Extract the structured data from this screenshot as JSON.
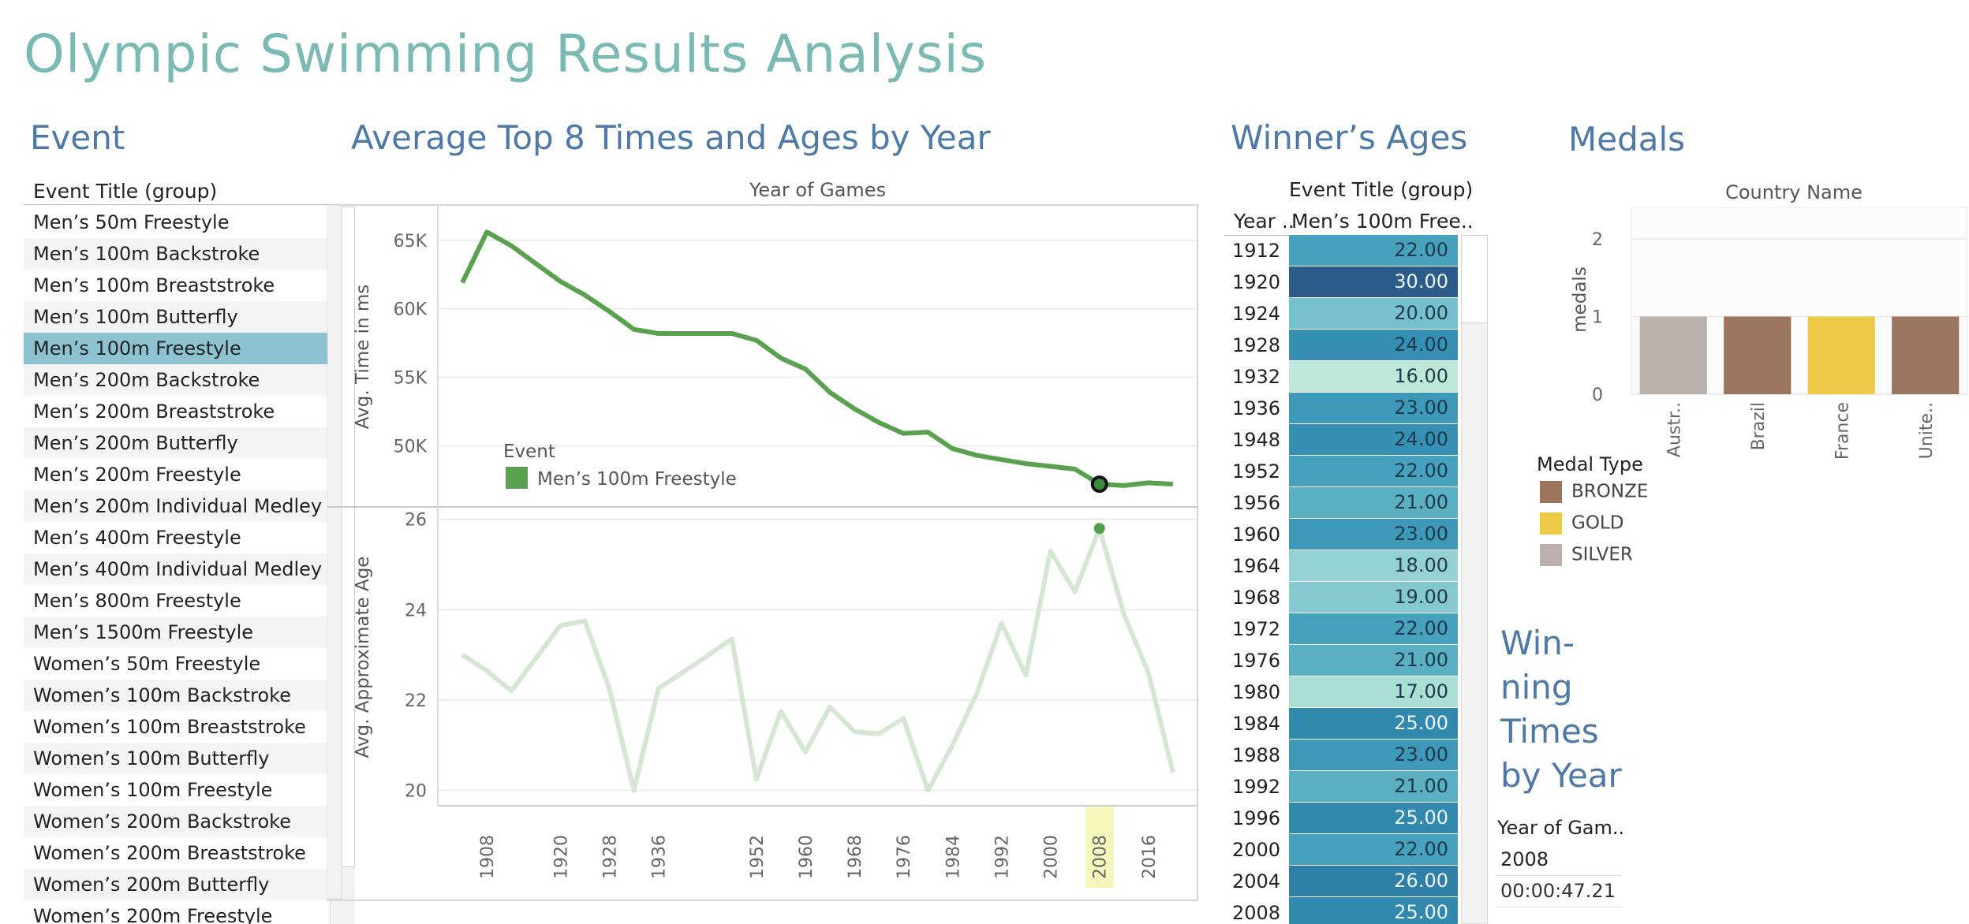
{
  "page_title": "Olympic Swimming Results Analysis",
  "event_section": {
    "title": "Event",
    "header": "Event Title (group)",
    "selected_index": 4,
    "items": [
      "Men’s 50m Freestyle",
      "Men’s 100m Backstroke",
      "Men’s 100m Breaststroke",
      "Men’s 100m Butterfly",
      "Men’s 100m Freestyle",
      "Men’s 200m Backstroke",
      "Men’s 200m Breaststroke",
      "Men’s 200m Butterfly",
      "Men’s 200m Freestyle",
      "Men’s 200m Individual Medley",
      "Men’s 400m Freestyle",
      "Men’s 400m Individual Medley",
      "Men’s 800m Freestyle",
      "Men’s 1500m Freestyle",
      "Women’s 50m Freestyle",
      "Women’s 100m Backstroke",
      "Women’s 100m Breaststroke",
      "Women’s 100m Butterfly",
      "Women’s 100m Freestyle",
      "Women’s 200m Backstroke",
      "Women’s 200m Breaststroke",
      "Women’s 200m Butterfly",
      "Women’s 200m Freestyle"
    ]
  },
  "line_section": {
    "title": "Average Top 8 Times and Ages by Year",
    "x_header": "Year of Games",
    "highlight_year": "2008",
    "colors": {
      "time_line": "#59a14f",
      "age_line": "#d5e6d3",
      "highlight": "#f1f2a6"
    }
  },
  "chart_data": [
    {
      "type": "line",
      "ylabel": "Avg. Time in ms",
      "ylim": [
        46000,
        67000
      ],
      "yticks": [
        "50K",
        "55K",
        "60K",
        "65K"
      ],
      "ytick_values": [
        50000,
        55000,
        60000,
        65000
      ],
      "xticks": [
        "1908",
        "1920",
        "1928",
        "1936",
        "1952",
        "1960",
        "1968",
        "1976",
        "1984",
        "1992",
        "2000",
        "2008",
        "2016"
      ],
      "x": [
        1904,
        1908,
        1912,
        1920,
        1924,
        1928,
        1932,
        1936,
        1948,
        1952,
        1956,
        1960,
        1964,
        1968,
        1972,
        1976,
        1980,
        1984,
        1988,
        1992,
        1996,
        2000,
        2004,
        2008,
        2012,
        2016,
        2020
      ],
      "series": [
        {
          "name": "Men’s 100m Freestyle",
          "values": [
            61900,
            65600,
            64600,
            62000,
            61000,
            59800,
            58500,
            58200,
            58200,
            57700,
            56400,
            55600,
            53900,
            52700,
            51700,
            50900,
            51000,
            49800,
            49300,
            49000,
            48700,
            48500,
            48300,
            47200,
            47100,
            47300,
            47200
          ]
        }
      ],
      "legend": {
        "title": "Event",
        "items": [
          "Men’s 100m Freestyle"
        ]
      }
    },
    {
      "type": "line",
      "ylabel": "Avg. Approximate Age",
      "ylim": [
        19.8,
        26.1
      ],
      "yticks": [
        "20",
        "22",
        "24",
        "26"
      ],
      "ytick_values": [
        20,
        22,
        24,
        26
      ],
      "x": [
        1904,
        1908,
        1912,
        1920,
        1924,
        1928,
        1932,
        1936,
        1948,
        1952,
        1956,
        1960,
        1964,
        1968,
        1972,
        1976,
        1980,
        1984,
        1988,
        1992,
        1996,
        2000,
        2004,
        2008,
        2012,
        2016,
        2020
      ],
      "series": [
        {
          "values": [
            23.0,
            22.65,
            22.2,
            23.65,
            23.75,
            22.25,
            20.0,
            22.25,
            23.35,
            20.25,
            21.75,
            20.85,
            21.85,
            21.3,
            21.25,
            21.6,
            20.0,
            21.0,
            22.15,
            23.7,
            22.55,
            25.3,
            24.4,
            25.8,
            23.9,
            22.6,
            20.4
          ]
        }
      ]
    },
    {
      "type": "bar",
      "title": "Country Name",
      "ylabel": "medals",
      "ylim": [
        0,
        2
      ],
      "yticks": [
        "0",
        "1",
        "2"
      ],
      "categories": [
        "Austr..",
        "Brazil",
        "France",
        "Unite.."
      ],
      "values": [
        1,
        1,
        1,
        1
      ],
      "bar_colors": [
        "#bab0ac",
        "#9c755f",
        "#edc948",
        "#9c755f"
      ],
      "legend": {
        "title": "Medal Type",
        "items": [
          {
            "label": "BRONZE",
            "color": "#9c755f"
          },
          {
            "label": "GOLD",
            "color": "#edc948"
          },
          {
            "label": "SILVER",
            "color": "#bab0ac"
          }
        ]
      }
    },
    {
      "type": "heatmap",
      "title": "Winner’s Ages",
      "header": "Event Title (group)",
      "col_year": "Year ..",
      "col_event": "Men’s 100m Free..",
      "rows": [
        {
          "year": "1912",
          "age": "22.00",
          "color": "#46a1bd"
        },
        {
          "year": "1920",
          "age": "30.00",
          "color": "#2b5c8a"
        },
        {
          "year": "1924",
          "age": "20.00",
          "color": "#76bfcc"
        },
        {
          "year": "1928",
          "age": "24.00",
          "color": "#3690b4"
        },
        {
          "year": "1932",
          "age": "16.00",
          "color": "#c0e8d9"
        },
        {
          "year": "1936",
          "age": "23.00",
          "color": "#3e99b9"
        },
        {
          "year": "1948",
          "age": "24.00",
          "color": "#3690b4"
        },
        {
          "year": "1952",
          "age": "22.00",
          "color": "#46a1bd"
        },
        {
          "year": "1956",
          "age": "21.00",
          "color": "#5bafc3"
        },
        {
          "year": "1960",
          "age": "23.00",
          "color": "#3e99b9"
        },
        {
          "year": "1964",
          "age": "18.00",
          "color": "#94d2d2"
        },
        {
          "year": "1968",
          "age": "19.00",
          "color": "#85c8cf"
        },
        {
          "year": "1972",
          "age": "22.00",
          "color": "#46a1bd"
        },
        {
          "year": "1976",
          "age": "21.00",
          "color": "#5bafc3"
        },
        {
          "year": "1980",
          "age": "17.00",
          "color": "#aadfd6"
        },
        {
          "year": "1984",
          "age": "25.00",
          "color": "#3189ae"
        },
        {
          "year": "1988",
          "age": "23.00",
          "color": "#3e99b9"
        },
        {
          "year": "1992",
          "age": "21.00",
          "color": "#5bafc3"
        },
        {
          "year": "1996",
          "age": "25.00",
          "color": "#3189ae"
        },
        {
          "year": "2000",
          "age": "22.00",
          "color": "#46a1bd"
        },
        {
          "year": "2004",
          "age": "26.00",
          "color": "#2e80a7"
        },
        {
          "year": "2008",
          "age": "25.00",
          "color": "#3189ae"
        }
      ]
    }
  ],
  "medals_section": {
    "title": "Medals"
  },
  "winning_section": {
    "title": "Winning Times by Year",
    "title_lines": [
      "Win-",
      "ning",
      "Times",
      "by Year"
    ],
    "field_label": "Year of Gam..",
    "year": "2008",
    "time": "00:00:47.21"
  }
}
